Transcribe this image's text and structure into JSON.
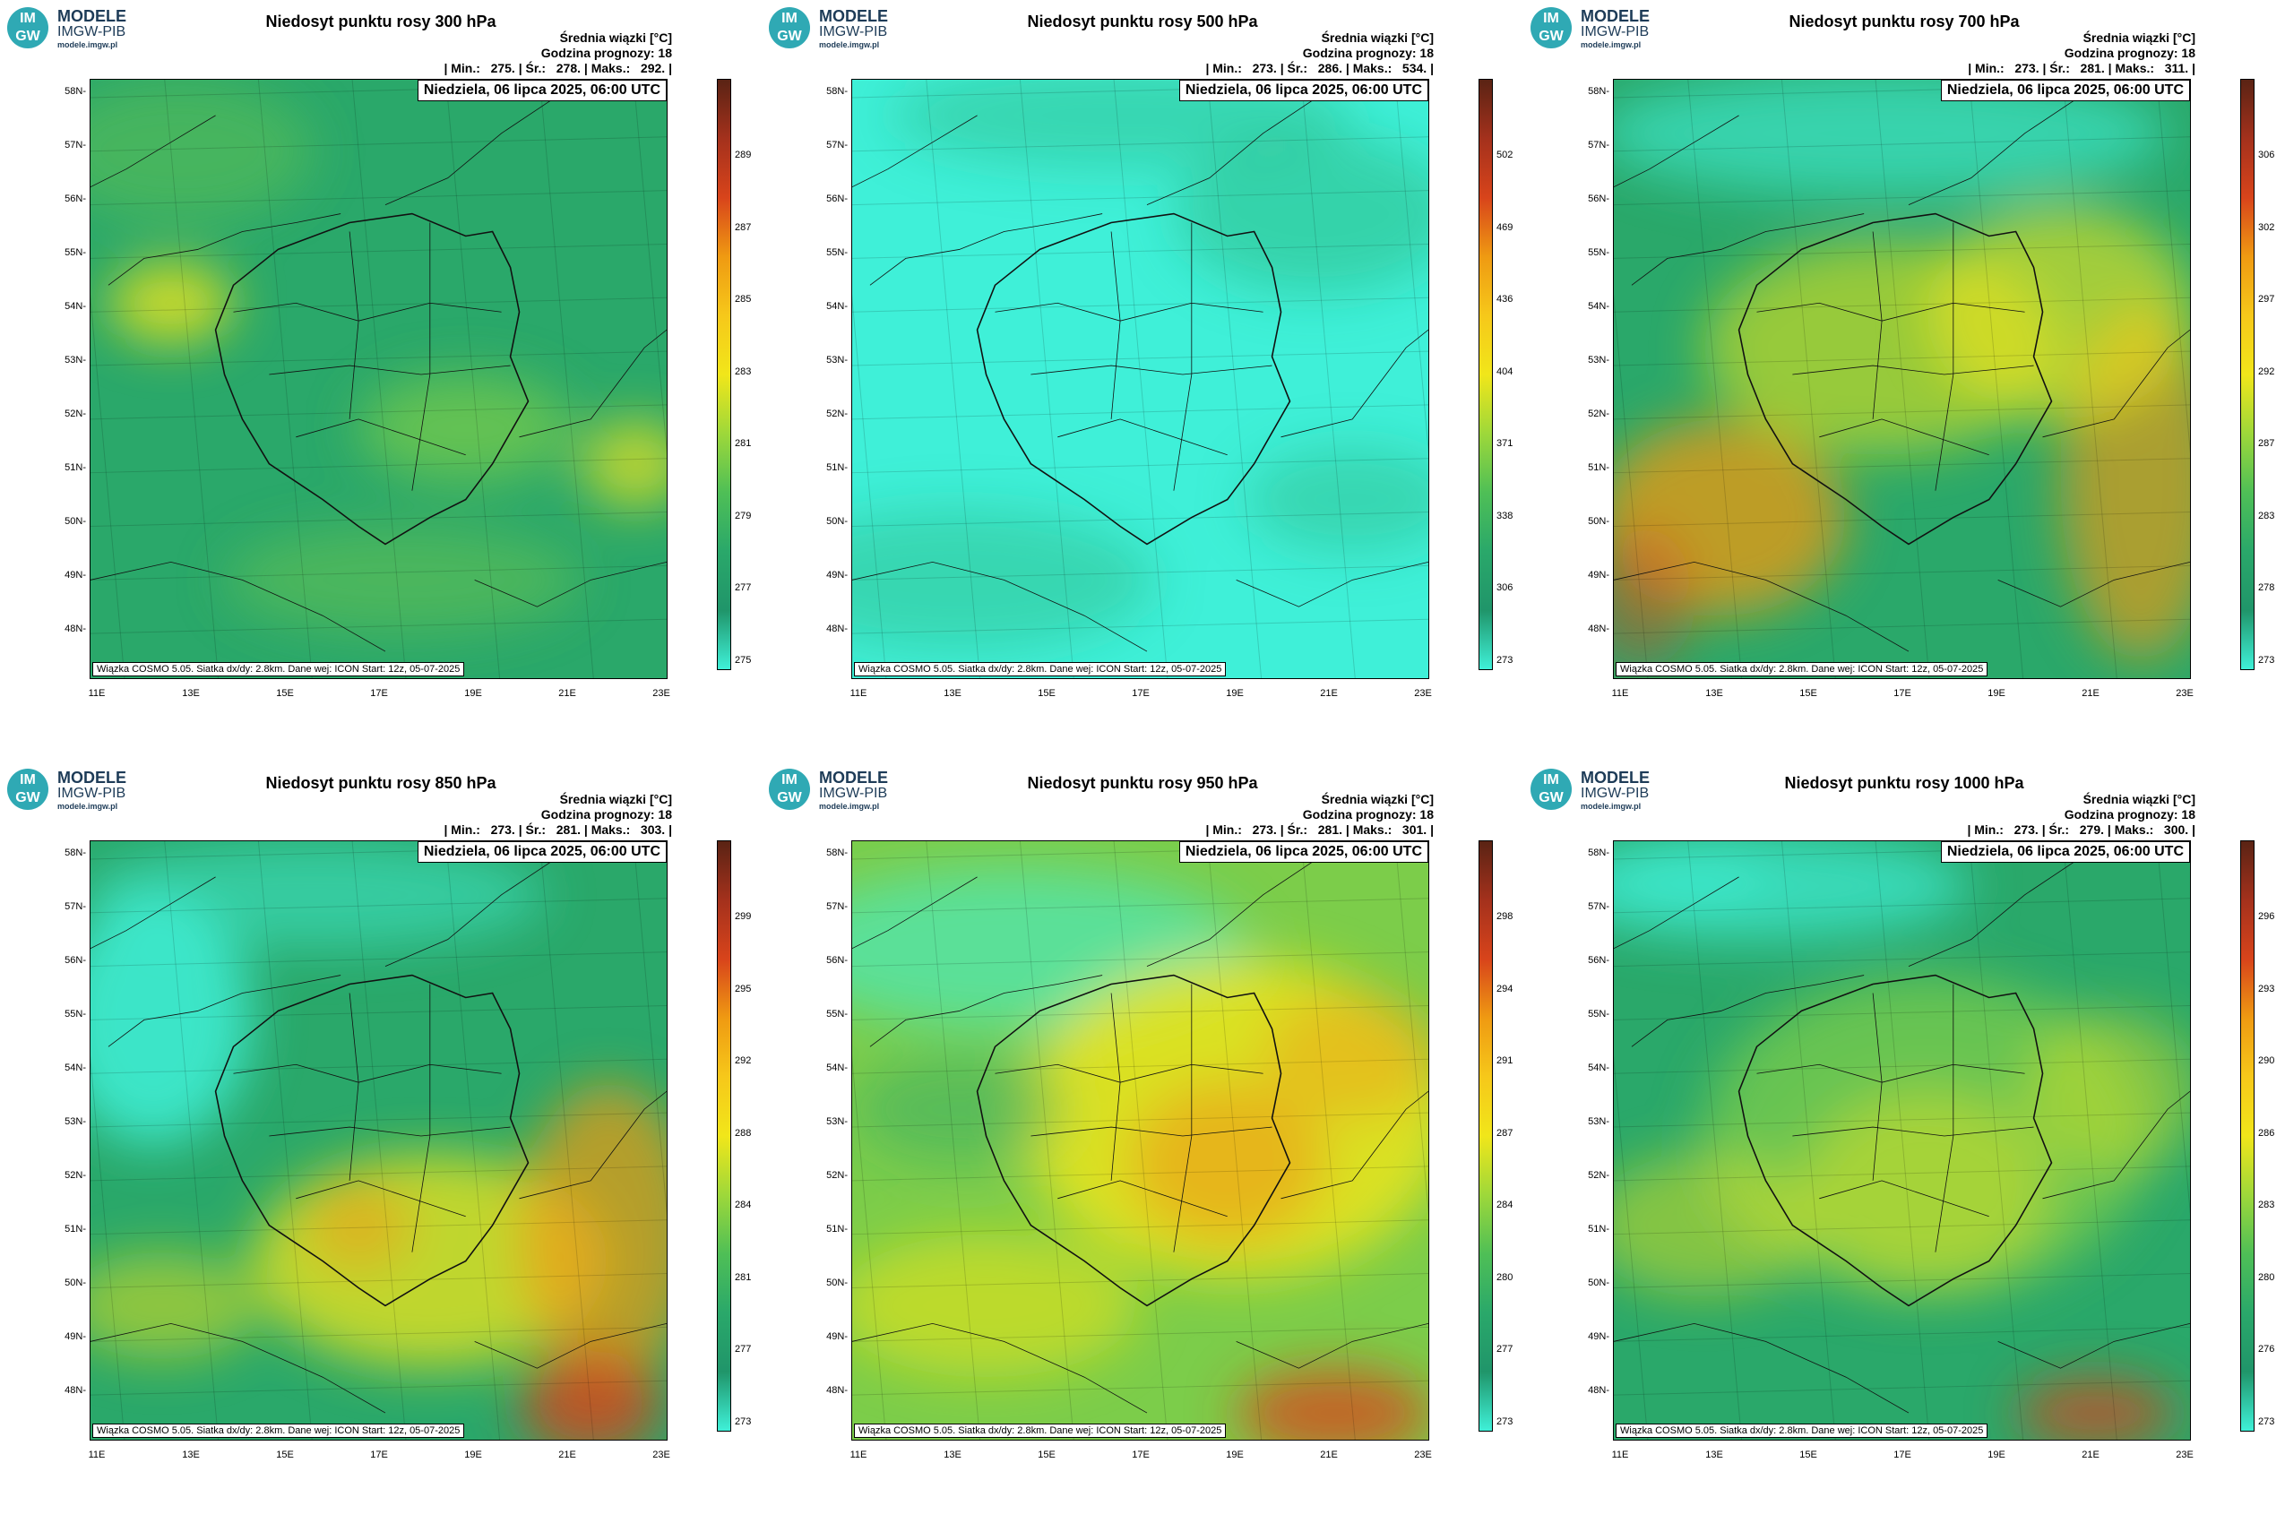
{
  "logo": {
    "badge_line1": "IM",
    "badge_line2": "GW",
    "name": "MODELE",
    "org": "IMGW-PIB",
    "url": "modele.imgw.pl"
  },
  "common": {
    "meta_line1": "Średnia wiązki [°C]",
    "meta_line2": "Godzina prognozy: 18",
    "date": "Niedziela, 06 lipca 2025, 06:00 UTC",
    "footnote": "Wiązka COSMO 5.05. Siatka dx/dy: 2.8km. Dane wej: ICON Start: 12z, 05-07-2025",
    "lat_labels": [
      "58N",
      "57N",
      "56N",
      "55N",
      "54N",
      "53N",
      "52N",
      "51N",
      "50N",
      "49N",
      "48N"
    ],
    "lon_labels": [
      "11E",
      "13E",
      "15E",
      "17E",
      "19E",
      "21E",
      "23E"
    ]
  },
  "panels": [
    {
      "title": "Niedosyt punktu rosy 300 hPa",
      "stats": "| Min.:   275. | Śr.:   278. | Maks.:   292. |",
      "colorbar_ticks": [
        "289",
        "287",
        "285",
        "283",
        "281",
        "279",
        "277",
        "275"
      ],
      "palette": "p300"
    },
    {
      "title": "Niedosyt punktu rosy 500 hPa",
      "stats": "| Min.:   273. | Śr.:   286. | Maks.:   534. |",
      "colorbar_ticks": [
        "502",
        "469",
        "436",
        "404",
        "371",
        "338",
        "306",
        "273"
      ],
      "palette": "p500"
    },
    {
      "title": "Niedosyt punktu rosy 700 hPa",
      "stats": "| Min.:   273. | Śr.:   281. | Maks.:   311. |",
      "colorbar_ticks": [
        "306",
        "302",
        "297",
        "292",
        "287",
        "283",
        "278",
        "273"
      ],
      "palette": "p700"
    },
    {
      "title": "Niedosyt punktu rosy 850 hPa",
      "stats": "| Min.:   273. | Śr.:   281. | Maks.:   303. |",
      "colorbar_ticks": [
        "299",
        "295",
        "292",
        "288",
        "284",
        "281",
        "277",
        "273"
      ],
      "palette": "p850"
    },
    {
      "title": "Niedosyt punktu rosy 950 hPa",
      "stats": "| Min.:   273. | Śr.:   281. | Maks.:   301. |",
      "colorbar_ticks": [
        "298",
        "294",
        "291",
        "287",
        "284",
        "280",
        "277",
        "273"
      ],
      "palette": "p950"
    },
    {
      "title": "Niedosyt punktu rosy 1000 hPa",
      "stats": "| Min.:   273. | Śr.:   279. | Maks.:   300. |",
      "colorbar_ticks": [
        "296",
        "293",
        "290",
        "286",
        "283",
        "280",
        "276",
        "273"
      ],
      "palette": "p1000"
    }
  ],
  "colors": {
    "cyan": "#3ff0d8",
    "green": "#2aa86a",
    "lightgreen": "#7ccd4a",
    "yellow": "#f1e61a",
    "orange": "#ef9a12",
    "red": "#d8441b",
    "darkred": "#5a2314"
  }
}
